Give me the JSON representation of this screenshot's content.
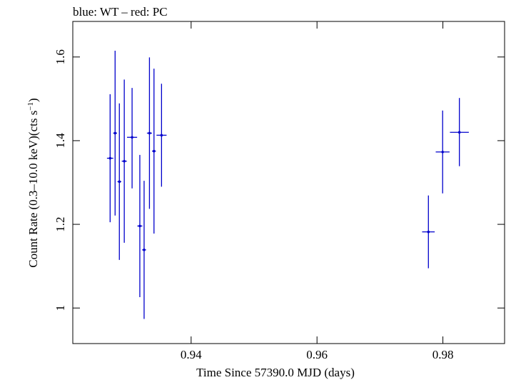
{
  "chart_data": {
    "type": "scatter",
    "title": "blue: WT – red: PC",
    "xlabel": "Time Since 57390.0 MJD (days)",
    "ylabel_main": "Count Rate (0.3–10.0 keV)(cts s",
    "ylabel_sup": "−1",
    "ylabel_tail": ")",
    "xlim": [
      0.9212,
      0.9898
    ],
    "ylim": [
      0.915,
      1.685
    ],
    "xticks": [
      {
        "v": 0.94,
        "label": "0.94"
      },
      {
        "v": 0.96,
        "label": "0.96"
      },
      {
        "v": 0.98,
        "label": "0.98"
      }
    ],
    "yticks": [
      {
        "v": 1.0,
        "label": "1"
      },
      {
        "v": 1.2,
        "label": "1.2"
      },
      {
        "v": 1.4,
        "label": "1.4"
      },
      {
        "v": 1.6,
        "label": "1.6"
      }
    ],
    "series": [
      {
        "name": "WT",
        "color": "#0000cc",
        "points": [
          {
            "x": 0.92713,
            "y": 1.358,
            "xerr": 0.0005,
            "ylo": 1.205,
            "yhi": 1.511
          },
          {
            "x": 0.92792,
            "y": 1.418,
            "xerr": 0.0003,
            "ylo": 1.221,
            "yhi": 1.615
          },
          {
            "x": 0.9286,
            "y": 1.302,
            "xerr": 0.0003,
            "ylo": 1.115,
            "yhi": 1.489
          },
          {
            "x": 0.92938,
            "y": 1.351,
            "xerr": 0.0004,
            "ylo": 1.156,
            "yhi": 1.546
          },
          {
            "x": 0.93062,
            "y": 1.408,
            "xerr": 0.0008,
            "ylo": 1.286,
            "yhi": 1.526
          },
          {
            "x": 0.93185,
            "y": 1.196,
            "xerr": 0.0004,
            "ylo": 1.026,
            "yhi": 1.366
          },
          {
            "x": 0.93253,
            "y": 1.139,
            "xerr": 0.0003,
            "ylo": 0.974,
            "yhi": 1.304
          },
          {
            "x": 0.93338,
            "y": 1.418,
            "xerr": 0.0004,
            "ylo": 1.237,
            "yhi": 1.599
          },
          {
            "x": 0.9341,
            "y": 1.375,
            "xerr": 0.0003,
            "ylo": 1.178,
            "yhi": 1.572
          },
          {
            "x": 0.9353,
            "y": 1.413,
            "xerr": 0.0008,
            "ylo": 1.29,
            "yhi": 1.536
          },
          {
            "x": 0.9777,
            "y": 1.182,
            "xerr": 0.001,
            "ylo": 1.095,
            "yhi": 1.269
          },
          {
            "x": 0.97996,
            "y": 1.373,
            "xerr": 0.0011,
            "ylo": 1.274,
            "yhi": 1.472
          },
          {
            "x": 0.98262,
            "y": 1.42,
            "xerr": 0.0015,
            "ylo": 1.339,
            "yhi": 1.502
          }
        ]
      }
    ]
  }
}
